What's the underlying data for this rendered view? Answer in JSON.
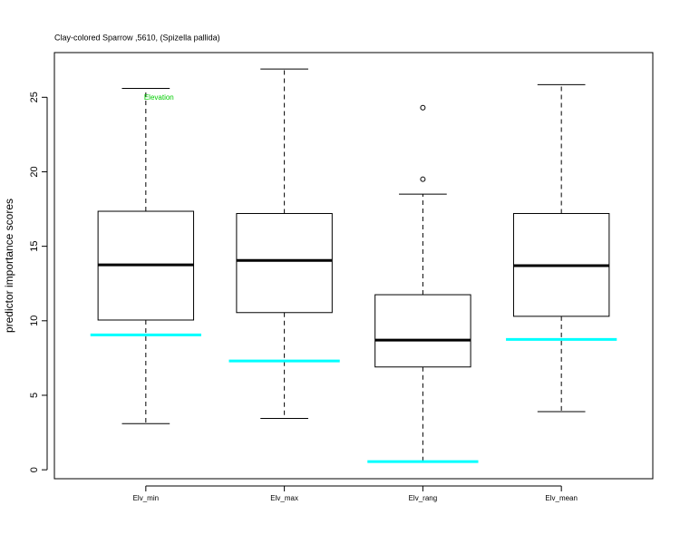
{
  "chart_data": {
    "type": "box",
    "title": "Clay-colored Sparrow ,5610, (Spizella pallida)",
    "y_label": "predictor importance scores",
    "categories": [
      "Elv_min",
      "Elv_max",
      "Elv_rang",
      "Elv_mean"
    ],
    "boxes": [
      {
        "whisker_low": 3.1,
        "q1": 10.05,
        "median": 13.75,
        "q3": 17.35,
        "whisker_high": 25.6,
        "outliers": []
      },
      {
        "whisker_low": 3.45,
        "q1": 10.55,
        "median": 14.05,
        "q3": 17.2,
        "whisker_high": 26.9,
        "outliers": []
      },
      {
        "whisker_low": 0.5,
        "q1": 6.9,
        "median": 8.7,
        "q3": 11.75,
        "whisker_high": 18.5,
        "outliers": [
          24.3,
          19.5
        ]
      },
      {
        "whisker_low": 3.9,
        "q1": 10.3,
        "median": 13.7,
        "q3": 17.2,
        "whisker_high": 25.85,
        "outliers": []
      }
    ],
    "reference_values": [
      9.05,
      7.3,
      0.55,
      8.75
    ],
    "reference_color": "#00ffff",
    "annotation": {
      "text": "Elevation",
      "color": "#00cc00"
    },
    "ylim": [
      -0.6,
      28
    ],
    "yticks": [
      0,
      5,
      10,
      15,
      20,
      25
    ]
  }
}
